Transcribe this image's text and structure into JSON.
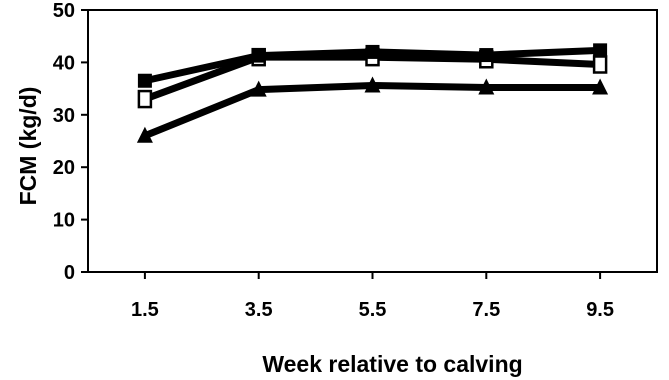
{
  "chart_data": {
    "type": "line",
    "title": "",
    "xlabel": "Week relative to calving",
    "ylabel": "FCM (kg/d)",
    "x": [
      1.5,
      3.5,
      5.5,
      7.5,
      9.5
    ],
    "x_tick_labels": [
      "1.5",
      "3.5",
      "5.5",
      "7.5",
      "9.5"
    ],
    "xlim": [
      0.5,
      10.5
    ],
    "ylim": [
      0,
      50
    ],
    "y_ticks": [
      0,
      10,
      20,
      30,
      40,
      50
    ],
    "y_tick_labels": [
      "0",
      "10",
      "20",
      "30",
      "40",
      "50"
    ],
    "grid": false,
    "legend": "none",
    "series": [
      {
        "marker": "filled-square",
        "color": "#000000",
        "values": [
          36.5,
          41.3,
          42.0,
          41.4,
          42.3
        ]
      },
      {
        "marker": "open-square",
        "color": "#000000",
        "values": [
          33.0,
          41.0,
          41.0,
          40.6,
          39.6
        ]
      },
      {
        "marker": "filled-triangle",
        "color": "#000000",
        "values": [
          26.0,
          34.8,
          35.6,
          35.2,
          35.2
        ]
      }
    ]
  }
}
